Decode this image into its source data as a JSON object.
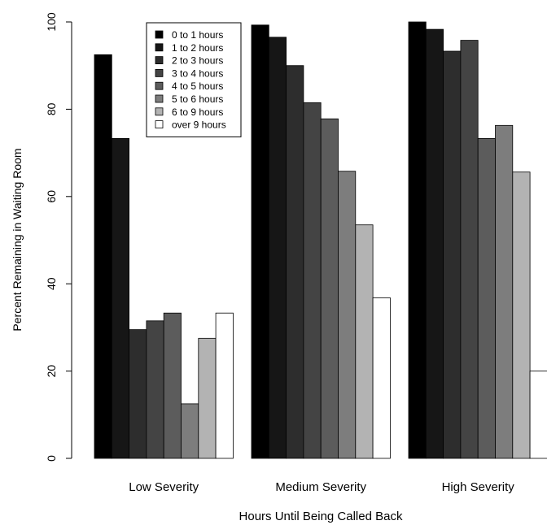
{
  "chart_data": {
    "type": "bar",
    "categories": [
      "Low Severity",
      "Medium Severity",
      "High Severity"
    ],
    "xlabel": "Hours Until Being Called Back",
    "ylabel": "Percent Remaining in Waiting Room",
    "ylim": [
      0,
      100
    ],
    "yticks": [
      "0",
      "20",
      "40",
      "60",
      "80",
      "100"
    ],
    "grid": false,
    "legend_position": "top-center",
    "series": [
      {
        "name": "0 to 1 hours",
        "color": "#000000",
        "values": [
          92.5,
          99.3,
          100
        ]
      },
      {
        "name": "1 to 2 hours",
        "color": "#161616",
        "values": [
          73.3,
          96.5,
          98.3
        ]
      },
      {
        "name": "2 to 3 hours",
        "color": "#2d2d2d",
        "values": [
          29.5,
          90,
          93.3
        ]
      },
      {
        "name": "3 to 4 hours",
        "color": "#444444",
        "values": [
          31.5,
          81.5,
          95.8
        ]
      },
      {
        "name": "4 to 5 hours",
        "color": "#5c5c5c",
        "values": [
          33.3,
          77.8,
          73.3
        ]
      },
      {
        "name": "5 to 6 hours",
        "color": "#7d7d7d",
        "values": [
          12.5,
          65.8,
          76.3
        ]
      },
      {
        "name": "6 to 9 hours",
        "color": "#b3b3b3",
        "values": [
          27.5,
          53.5,
          65.6
        ]
      },
      {
        "name": "over 9 hours",
        "color": "#ffffff",
        "values": [
          33.3,
          36.8,
          20
        ]
      }
    ]
  }
}
